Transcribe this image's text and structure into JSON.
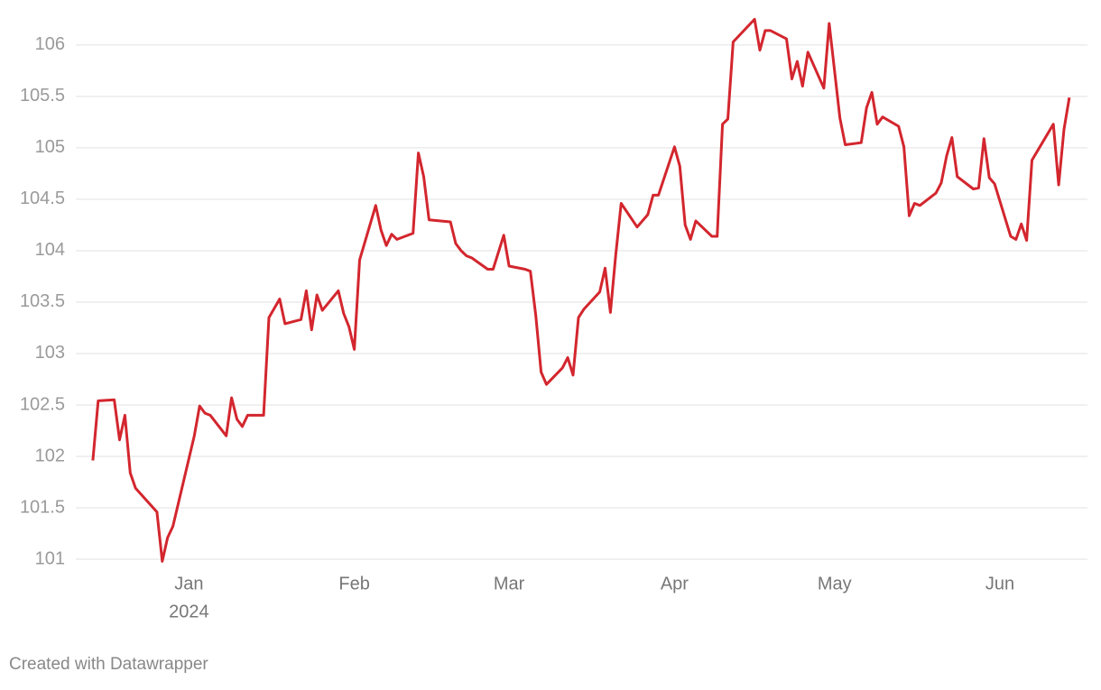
{
  "chart_data": {
    "type": "line",
    "x": [
      -18,
      -17,
      -14,
      -13,
      -12,
      -11,
      -10,
      -6,
      -5,
      -4,
      -3,
      1,
      2,
      3,
      4,
      7,
      8,
      9,
      10,
      11,
      14,
      15,
      17,
      18,
      21,
      22,
      23,
      24,
      25,
      28,
      29,
      30,
      31,
      32,
      35,
      36,
      37,
      38,
      39,
      42,
      43,
      44,
      45,
      49,
      50,
      51,
      52,
      53,
      56,
      57,
      59,
      60,
      63,
      64,
      65,
      66,
      67,
      70,
      71,
      72,
      73,
      74,
      77,
      78,
      79,
      80,
      81,
      84,
      86,
      87,
      88,
      91,
      92,
      93,
      94,
      95,
      98,
      99,
      100,
      101,
      102,
      106,
      107,
      108,
      109,
      112,
      113,
      114,
      115,
      116,
      119,
      120,
      122,
      123,
      126,
      127,
      128,
      129,
      130,
      133,
      134,
      135,
      136,
      137,
      140,
      141,
      142,
      143,
      144,
      147,
      148,
      149,
      150,
      151,
      154,
      155,
      156,
      157,
      158,
      162,
      163,
      164,
      165
    ],
    "series": [
      {
        "color": "#d3262e",
        "values": [
          101.96,
          102.54,
          102.55,
          102.16,
          102.4,
          101.84,
          101.69,
          101.46,
          100.98,
          101.21,
          101.32,
          102.2,
          102.49,
          102.42,
          102.4,
          102.2,
          102.57,
          102.36,
          102.29,
          102.4,
          102.4,
          103.35,
          103.53,
          103.29,
          103.33,
          103.61,
          103.23,
          103.57,
          103.42,
          103.61,
          103.39,
          103.26,
          103.04,
          103.91,
          104.44,
          104.2,
          104.05,
          104.16,
          104.11,
          104.17,
          104.95,
          104.72,
          104.3,
          104.28,
          104.07,
          104.0,
          103.95,
          103.93,
          103.82,
          103.82,
          104.15,
          103.85,
          103.82,
          103.8,
          103.37,
          102.82,
          102.7,
          102.86,
          102.96,
          102.79,
          103.35,
          103.43,
          103.6,
          103.83,
          103.4,
          103.96,
          104.46,
          104.23,
          104.35,
          104.54,
          104.54,
          105.01,
          104.82,
          104.25,
          104.11,
          104.29,
          104.14,
          104.14,
          105.23,
          105.28,
          106.03,
          106.25,
          105.95,
          106.14,
          106.14,
          106.06,
          105.67,
          105.84,
          105.6,
          105.93,
          105.58,
          106.21,
          105.29,
          105.03,
          105.05,
          105.39,
          105.54,
          105.23,
          105.3,
          105.21,
          105.01,
          104.34,
          104.46,
          104.44,
          104.56,
          104.66,
          104.92,
          105.1,
          104.72,
          104.6,
          104.61,
          105.09,
          104.71,
          104.65,
          104.14,
          104.11,
          104.26,
          104.1,
          104.88,
          105.23,
          104.64,
          105.18,
          105.49
        ]
      }
    ],
    "xlim": [
      -21.2,
      168.4
    ],
    "xticks": [
      {
        "value": 0,
        "label": "Jan"
      },
      {
        "value": 31,
        "label": "Feb"
      },
      {
        "value": 60,
        "label": "Mar"
      },
      {
        "value": 91,
        "label": "Apr"
      },
      {
        "value": 121,
        "label": "May"
      },
      {
        "value": 152,
        "label": "Jun"
      }
    ],
    "year": "2024",
    "ylim": [
      100.95,
      106.3
    ],
    "yticks": [
      101,
      101.5,
      102,
      102.5,
      103,
      103.5,
      104,
      104.5,
      105,
      105.5,
      106
    ],
    "grid": true,
    "footer": "Created with Datawrapper"
  }
}
